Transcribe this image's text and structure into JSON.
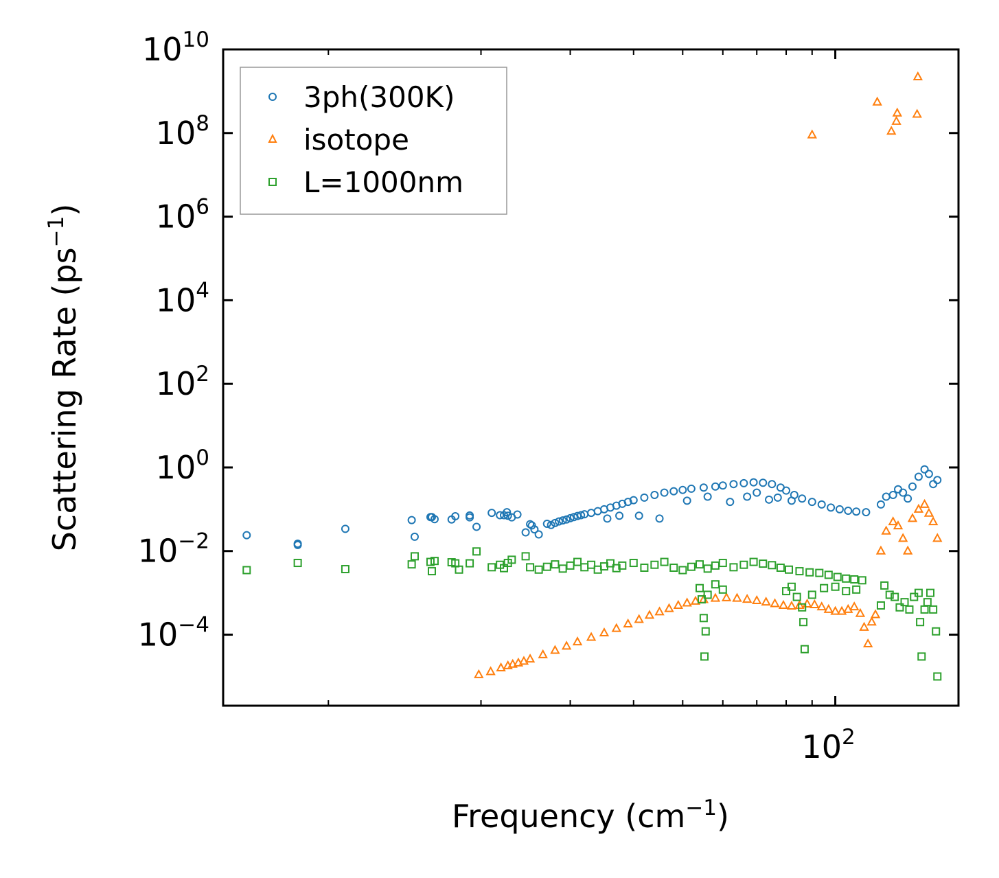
{
  "chart_data": {
    "type": "scatter",
    "xscale": "log",
    "yscale": "log",
    "xlim": [
      6.2,
      175
    ],
    "ylim": [
      2e-06,
      10000000000.0
    ],
    "xlabel": {
      "base": "Frequency (cm",
      "sup": "−1",
      "tail": ")"
    },
    "ylabel": {
      "base": "Scattering Rate (ps",
      "sup": "−1",
      "tail": ")"
    },
    "x_ticks": [
      {
        "value": 100,
        "base": "10",
        "exp": "2"
      }
    ],
    "y_ticks": [
      {
        "value": 0.0001,
        "base": "10",
        "exp": "−4"
      },
      {
        "value": 0.01,
        "base": "10",
        "exp": "−2"
      },
      {
        "value": 1,
        "base": "10",
        "exp": "0"
      },
      {
        "value": 100.0,
        "base": "10",
        "exp": "2"
      },
      {
        "value": 10000.0,
        "base": "10",
        "exp": "4"
      },
      {
        "value": 1000000.0,
        "base": "10",
        "exp": "6"
      },
      {
        "value": 100000000.0,
        "base": "10",
        "exp": "8"
      },
      {
        "value": 10000000000.0,
        "base": "10",
        "exp": "10"
      }
    ],
    "legend_position": "top-left",
    "series": [
      {
        "name": "3ph(300K)",
        "marker": "circle",
        "color": "#1f77b4",
        "points": [
          [
            6.9,
            0.024
          ],
          [
            8.7,
            0.015
          ],
          [
            8.7,
            0.014
          ],
          [
            10.8,
            0.034
          ],
          [
            14.6,
            0.055
          ],
          [
            14.8,
            0.022
          ],
          [
            15.9,
            0.065
          ],
          [
            16.0,
            0.065
          ],
          [
            16.2,
            0.058
          ],
          [
            17.5,
            0.057
          ],
          [
            17.8,
            0.068
          ],
          [
            19.0,
            0.071
          ],
          [
            19.0,
            0.064
          ],
          [
            19.6,
            0.038
          ],
          [
            21.0,
            0.082
          ],
          [
            21.8,
            0.072
          ],
          [
            22.2,
            0.072
          ],
          [
            22.5,
            0.085
          ],
          [
            22.6,
            0.07
          ],
          [
            23.0,
            0.064
          ],
          [
            23.6,
            0.075
          ],
          [
            24.5,
            0.028
          ],
          [
            25.0,
            0.044
          ],
          [
            25.2,
            0.041
          ],
          [
            27.0,
            0.045
          ],
          [
            27.5,
            0.042
          ],
          [
            28.0,
            0.047
          ],
          [
            28.5,
            0.051
          ],
          [
            29.0,
            0.054
          ],
          [
            29.5,
            0.057
          ],
          [
            30.0,
            0.061
          ],
          [
            30.5,
            0.065
          ],
          [
            31.0,
            0.069
          ],
          [
            31.5,
            0.072
          ],
          [
            32.0,
            0.076
          ],
          [
            33.0,
            0.082
          ],
          [
            34.0,
            0.09
          ],
          [
            35.0,
            0.1
          ],
          [
            36.0,
            0.11
          ],
          [
            37.0,
            0.122
          ],
          [
            38.0,
            0.135
          ],
          [
            39.0,
            0.15
          ],
          [
            40.0,
            0.165
          ],
          [
            42.0,
            0.19
          ],
          [
            44.0,
            0.22
          ],
          [
            46.0,
            0.25
          ],
          [
            48.0,
            0.27
          ],
          [
            50.0,
            0.29
          ],
          [
            52.0,
            0.31
          ],
          [
            55.0,
            0.33
          ],
          [
            58.0,
            0.35
          ],
          [
            60.0,
            0.37
          ],
          [
            63.0,
            0.4
          ],
          [
            66.0,
            0.42
          ],
          [
            69.0,
            0.44
          ],
          [
            72.0,
            0.43
          ],
          [
            75.0,
            0.4
          ],
          [
            78.0,
            0.33
          ],
          [
            80.0,
            0.28
          ],
          [
            83.0,
            0.22
          ],
          [
            86.0,
            0.18
          ],
          [
            90.0,
            0.15
          ],
          [
            94.0,
            0.13
          ],
          [
            98.0,
            0.11
          ],
          [
            102.0,
            0.1
          ],
          [
            106.0,
            0.092
          ],
          [
            110.0,
            0.088
          ],
          [
            115.0,
            0.085
          ],
          [
            25.5,
            0.033
          ],
          [
            26.0,
            0.025
          ],
          [
            41.0,
            0.07
          ],
          [
            45.0,
            0.06
          ],
          [
            51.0,
            0.16
          ],
          [
            56.0,
            0.2
          ],
          [
            62.0,
            0.15
          ],
          [
            67.0,
            0.2
          ],
          [
            70.0,
            0.25
          ],
          [
            74.0,
            0.17
          ],
          [
            77.0,
            0.19
          ],
          [
            82.0,
            0.16
          ],
          [
            35.5,
            0.06
          ],
          [
            37.5,
            0.07
          ],
          [
            123,
            0.13
          ],
          [
            126,
            0.2
          ],
          [
            130,
            0.22
          ],
          [
            133,
            0.3
          ],
          [
            136,
            0.25
          ],
          [
            139,
            0.18
          ],
          [
            142,
            0.35
          ],
          [
            146,
            0.6
          ],
          [
            150,
            0.9
          ],
          [
            153,
            0.7
          ],
          [
            156,
            0.4
          ],
          [
            159,
            0.5
          ]
        ]
      },
      {
        "name": "isotope",
        "marker": "triangle",
        "color": "#ff7f0e",
        "points": [
          [
            19.8,
            1.1e-05
          ],
          [
            20.9,
            1.3e-05
          ],
          [
            21.9,
            1.6e-05
          ],
          [
            22.6,
            1.8e-05
          ],
          [
            23.1,
            1.95e-05
          ],
          [
            23.7,
            2.1e-05
          ],
          [
            24.3,
            2.3e-05
          ],
          [
            25.0,
            2.6e-05
          ],
          [
            26.5,
            3.3e-05
          ],
          [
            28.0,
            4.2e-05
          ],
          [
            29.5,
            5.3e-05
          ],
          [
            31.0,
            6.7e-05
          ],
          [
            33.0,
            8.6e-05
          ],
          [
            35.0,
            0.00011
          ],
          [
            37.0,
            0.00014
          ],
          [
            39.0,
            0.00018
          ],
          [
            41.0,
            0.00023
          ],
          [
            43.0,
            0.00029
          ],
          [
            45.0,
            0.00035
          ],
          [
            47.0,
            0.00042
          ],
          [
            49.0,
            0.0005
          ],
          [
            51.0,
            0.00057
          ],
          [
            53.0,
            0.00063
          ],
          [
            55.0,
            0.00069
          ],
          [
            58.0,
            0.00074
          ],
          [
            61.0,
            0.00076
          ],
          [
            64.0,
            0.00074
          ],
          [
            67.0,
            0.0007
          ],
          [
            70.0,
            0.00065
          ],
          [
            73.0,
            0.0006
          ],
          [
            76.0,
            0.00055
          ],
          [
            79.0,
            0.0005
          ],
          [
            82.0,
            0.00048
          ],
          [
            85.0,
            0.0005
          ],
          [
            88.0,
            0.00054
          ],
          [
            91.0,
            0.00052
          ],
          [
            94.0,
            0.00046
          ],
          [
            97.0,
            0.0004
          ],
          [
            100.0,
            0.00036
          ],
          [
            103.0,
            0.00036
          ],
          [
            106.0,
            0.0004
          ],
          [
            109.0,
            0.00046
          ],
          [
            112.0,
            0.00032
          ],
          [
            114.0,
            0.00015
          ],
          [
            116.0,
            6e-05
          ],
          [
            118,
            0.0002
          ],
          [
            120,
            0.0003
          ],
          [
            123,
            0.01
          ],
          [
            126,
            0.03
          ],
          [
            130,
            0.05
          ],
          [
            133,
            0.04
          ],
          [
            136,
            0.02
          ],
          [
            139,
            0.01
          ],
          [
            142,
            0.06
          ],
          [
            146,
            0.1
          ],
          [
            150,
            0.13
          ],
          [
            153,
            0.08
          ],
          [
            156,
            0.05
          ],
          [
            159,
            0.02
          ],
          [
            90.0,
            90000000.0
          ],
          [
            121.0,
            550000000.0
          ],
          [
            129.0,
            110000000.0
          ],
          [
            132.0,
            190000000.0
          ],
          [
            132.5,
            300000000.0
          ],
          [
            145.0,
            280000000.0
          ],
          [
            145.5,
            2200000000.0
          ]
        ]
      },
      {
        "name": "L=1000nm",
        "marker": "square",
        "color": "#2ca02c",
        "points": [
          [
            6.9,
            0.0035
          ],
          [
            8.7,
            0.0052
          ],
          [
            10.8,
            0.0037
          ],
          [
            14.6,
            0.0048
          ],
          [
            14.8,
            0.0075
          ],
          [
            15.9,
            0.0055
          ],
          [
            16.0,
            0.0033
          ],
          [
            16.2,
            0.0058
          ],
          [
            17.5,
            0.0054
          ],
          [
            17.8,
            0.0051
          ],
          [
            18.1,
            0.0036
          ],
          [
            19.0,
            0.0051
          ],
          [
            19.6,
            0.0098
          ],
          [
            21.0,
            0.0041
          ],
          [
            21.8,
            0.0047
          ],
          [
            22.2,
            0.0039
          ],
          [
            22.6,
            0.0052
          ],
          [
            23.0,
            0.0062
          ],
          [
            24.5,
            0.0075
          ],
          [
            25.0,
            0.0041
          ],
          [
            26.0,
            0.0036
          ],
          [
            27.0,
            0.0042
          ],
          [
            28.0,
            0.0048
          ],
          [
            29.0,
            0.0038
          ],
          [
            30.0,
            0.0045
          ],
          [
            31.0,
            0.0055
          ],
          [
            32.0,
            0.0041
          ],
          [
            33.0,
            0.0047
          ],
          [
            34.0,
            0.0036
          ],
          [
            35.0,
            0.0043
          ],
          [
            36.0,
            0.0051
          ],
          [
            37.0,
            0.0039
          ],
          [
            38.0,
            0.0045
          ],
          [
            40.0,
            0.0052
          ],
          [
            42.0,
            0.004
          ],
          [
            44.0,
            0.0047
          ],
          [
            46.0,
            0.0055
          ],
          [
            48.0,
            0.004
          ],
          [
            50.0,
            0.0035
          ],
          [
            52.0,
            0.0042
          ],
          [
            54.0,
            0.0048
          ],
          [
            56.0,
            0.0038
          ],
          [
            58.0,
            0.0045
          ],
          [
            60.0,
            0.0052
          ],
          [
            63.0,
            0.0041
          ],
          [
            66.0,
            0.0047
          ],
          [
            69.0,
            0.0055
          ],
          [
            72.0,
            0.005
          ],
          [
            75.0,
            0.0046
          ],
          [
            78.0,
            0.004
          ],
          [
            81.0,
            0.0036
          ],
          [
            85.0,
            0.0033
          ],
          [
            89.0,
            0.0031
          ],
          [
            93.0,
            0.003
          ],
          [
            97.0,
            0.0027
          ],
          [
            101.0,
            0.0024
          ],
          [
            105.0,
            0.0022
          ],
          [
            109.0,
            0.0021
          ],
          [
            113.0,
            0.002
          ],
          [
            54.0,
            0.0013
          ],
          [
            54.5,
            0.0007
          ],
          [
            55.0,
            0.00025
          ],
          [
            55.5,
            0.00012
          ],
          [
            55.2,
            3e-05
          ],
          [
            56.0,
            0.0009
          ],
          [
            58.0,
            0.0016
          ],
          [
            60.0,
            0.0012
          ],
          [
            80.0,
            0.0011
          ],
          [
            82.0,
            0.0014
          ],
          [
            84.0,
            0.0008
          ],
          [
            86.0,
            0.00045
          ],
          [
            86.5,
            0.0002
          ],
          [
            87.0,
            4.5e-05
          ],
          [
            90.0,
            0.0009
          ],
          [
            95.0,
            0.0013
          ],
          [
            100.0,
            0.0014
          ],
          [
            105.0,
            0.0011
          ],
          [
            110.0,
            0.0012
          ],
          [
            123,
            0.0005
          ],
          [
            125,
            0.0015
          ],
          [
            128,
            0.0009
          ],
          [
            131,
            0.0008
          ],
          [
            134,
            0.00045
          ],
          [
            137,
            0.0006
          ],
          [
            140,
            0.0004
          ],
          [
            143,
            0.0008
          ],
          [
            146,
            0.001
          ],
          [
            147,
            0.0002
          ],
          [
            148,
            3e-05
          ],
          [
            150,
            0.0004
          ],
          [
            152,
            0.0006
          ],
          [
            154,
            0.001
          ],
          [
            156,
            0.0004
          ],
          [
            158,
            0.00012
          ],
          [
            159,
            1e-05
          ]
        ]
      }
    ]
  }
}
